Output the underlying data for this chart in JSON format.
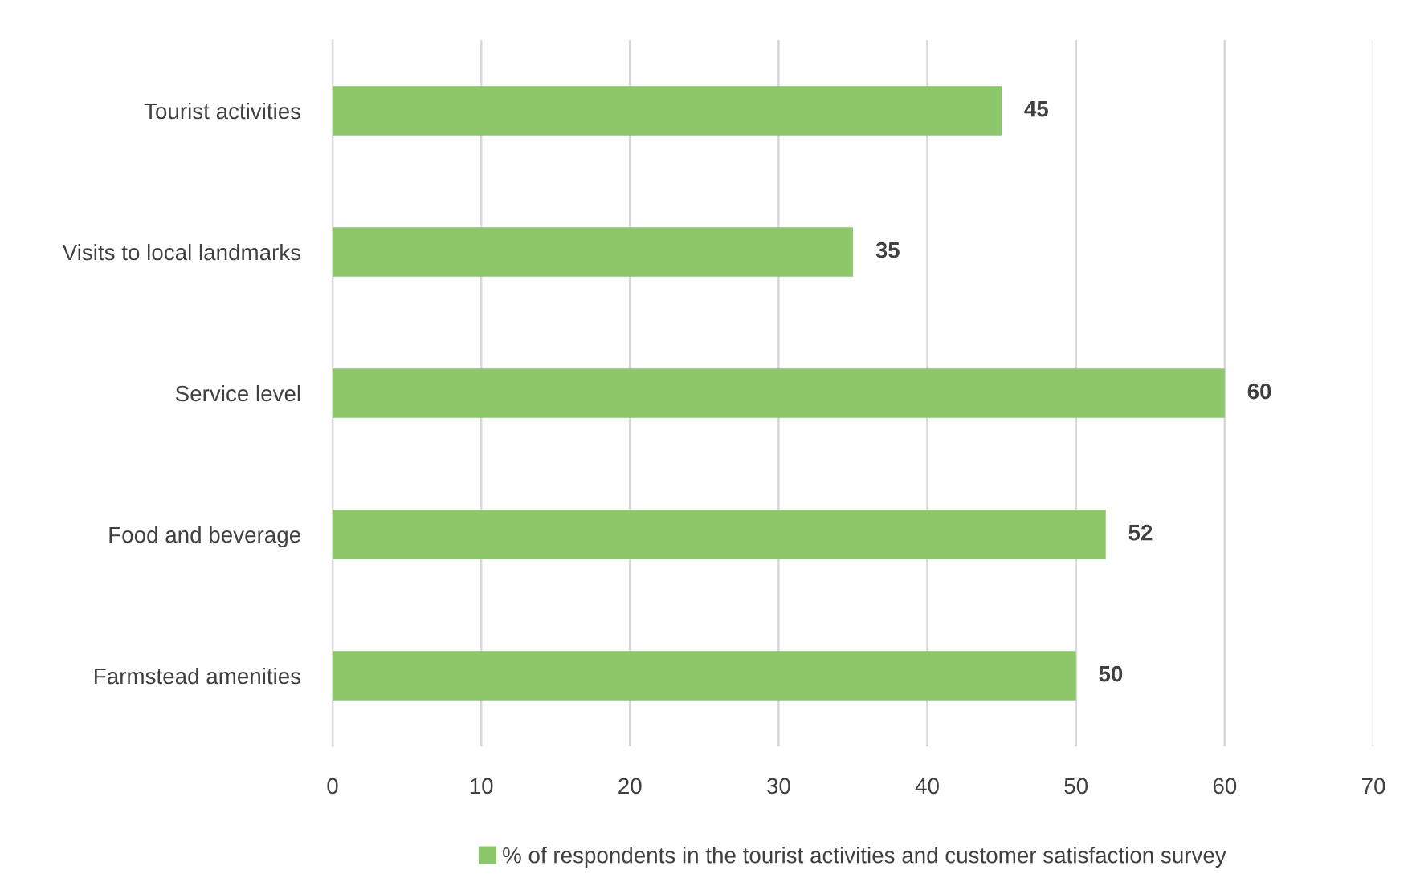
{
  "chart_data": {
    "type": "bar",
    "orientation": "horizontal",
    "categories": [
      "Tourist activities",
      "Visits to local landmarks",
      "Service level",
      "Food and beverage",
      "Farmstead amenities"
    ],
    "series": [
      {
        "name": "% of respondents in the tourist activities and customer satisfaction survey",
        "color": "#8dc66b",
        "values": [
          45,
          35,
          60,
          52,
          50
        ]
      }
    ],
    "xlim": [
      0,
      70
    ],
    "xticks": [
      0,
      10,
      20,
      30,
      40,
      50,
      60,
      70
    ],
    "grid": "x",
    "legend": "bottom",
    "data_labels": true
  }
}
